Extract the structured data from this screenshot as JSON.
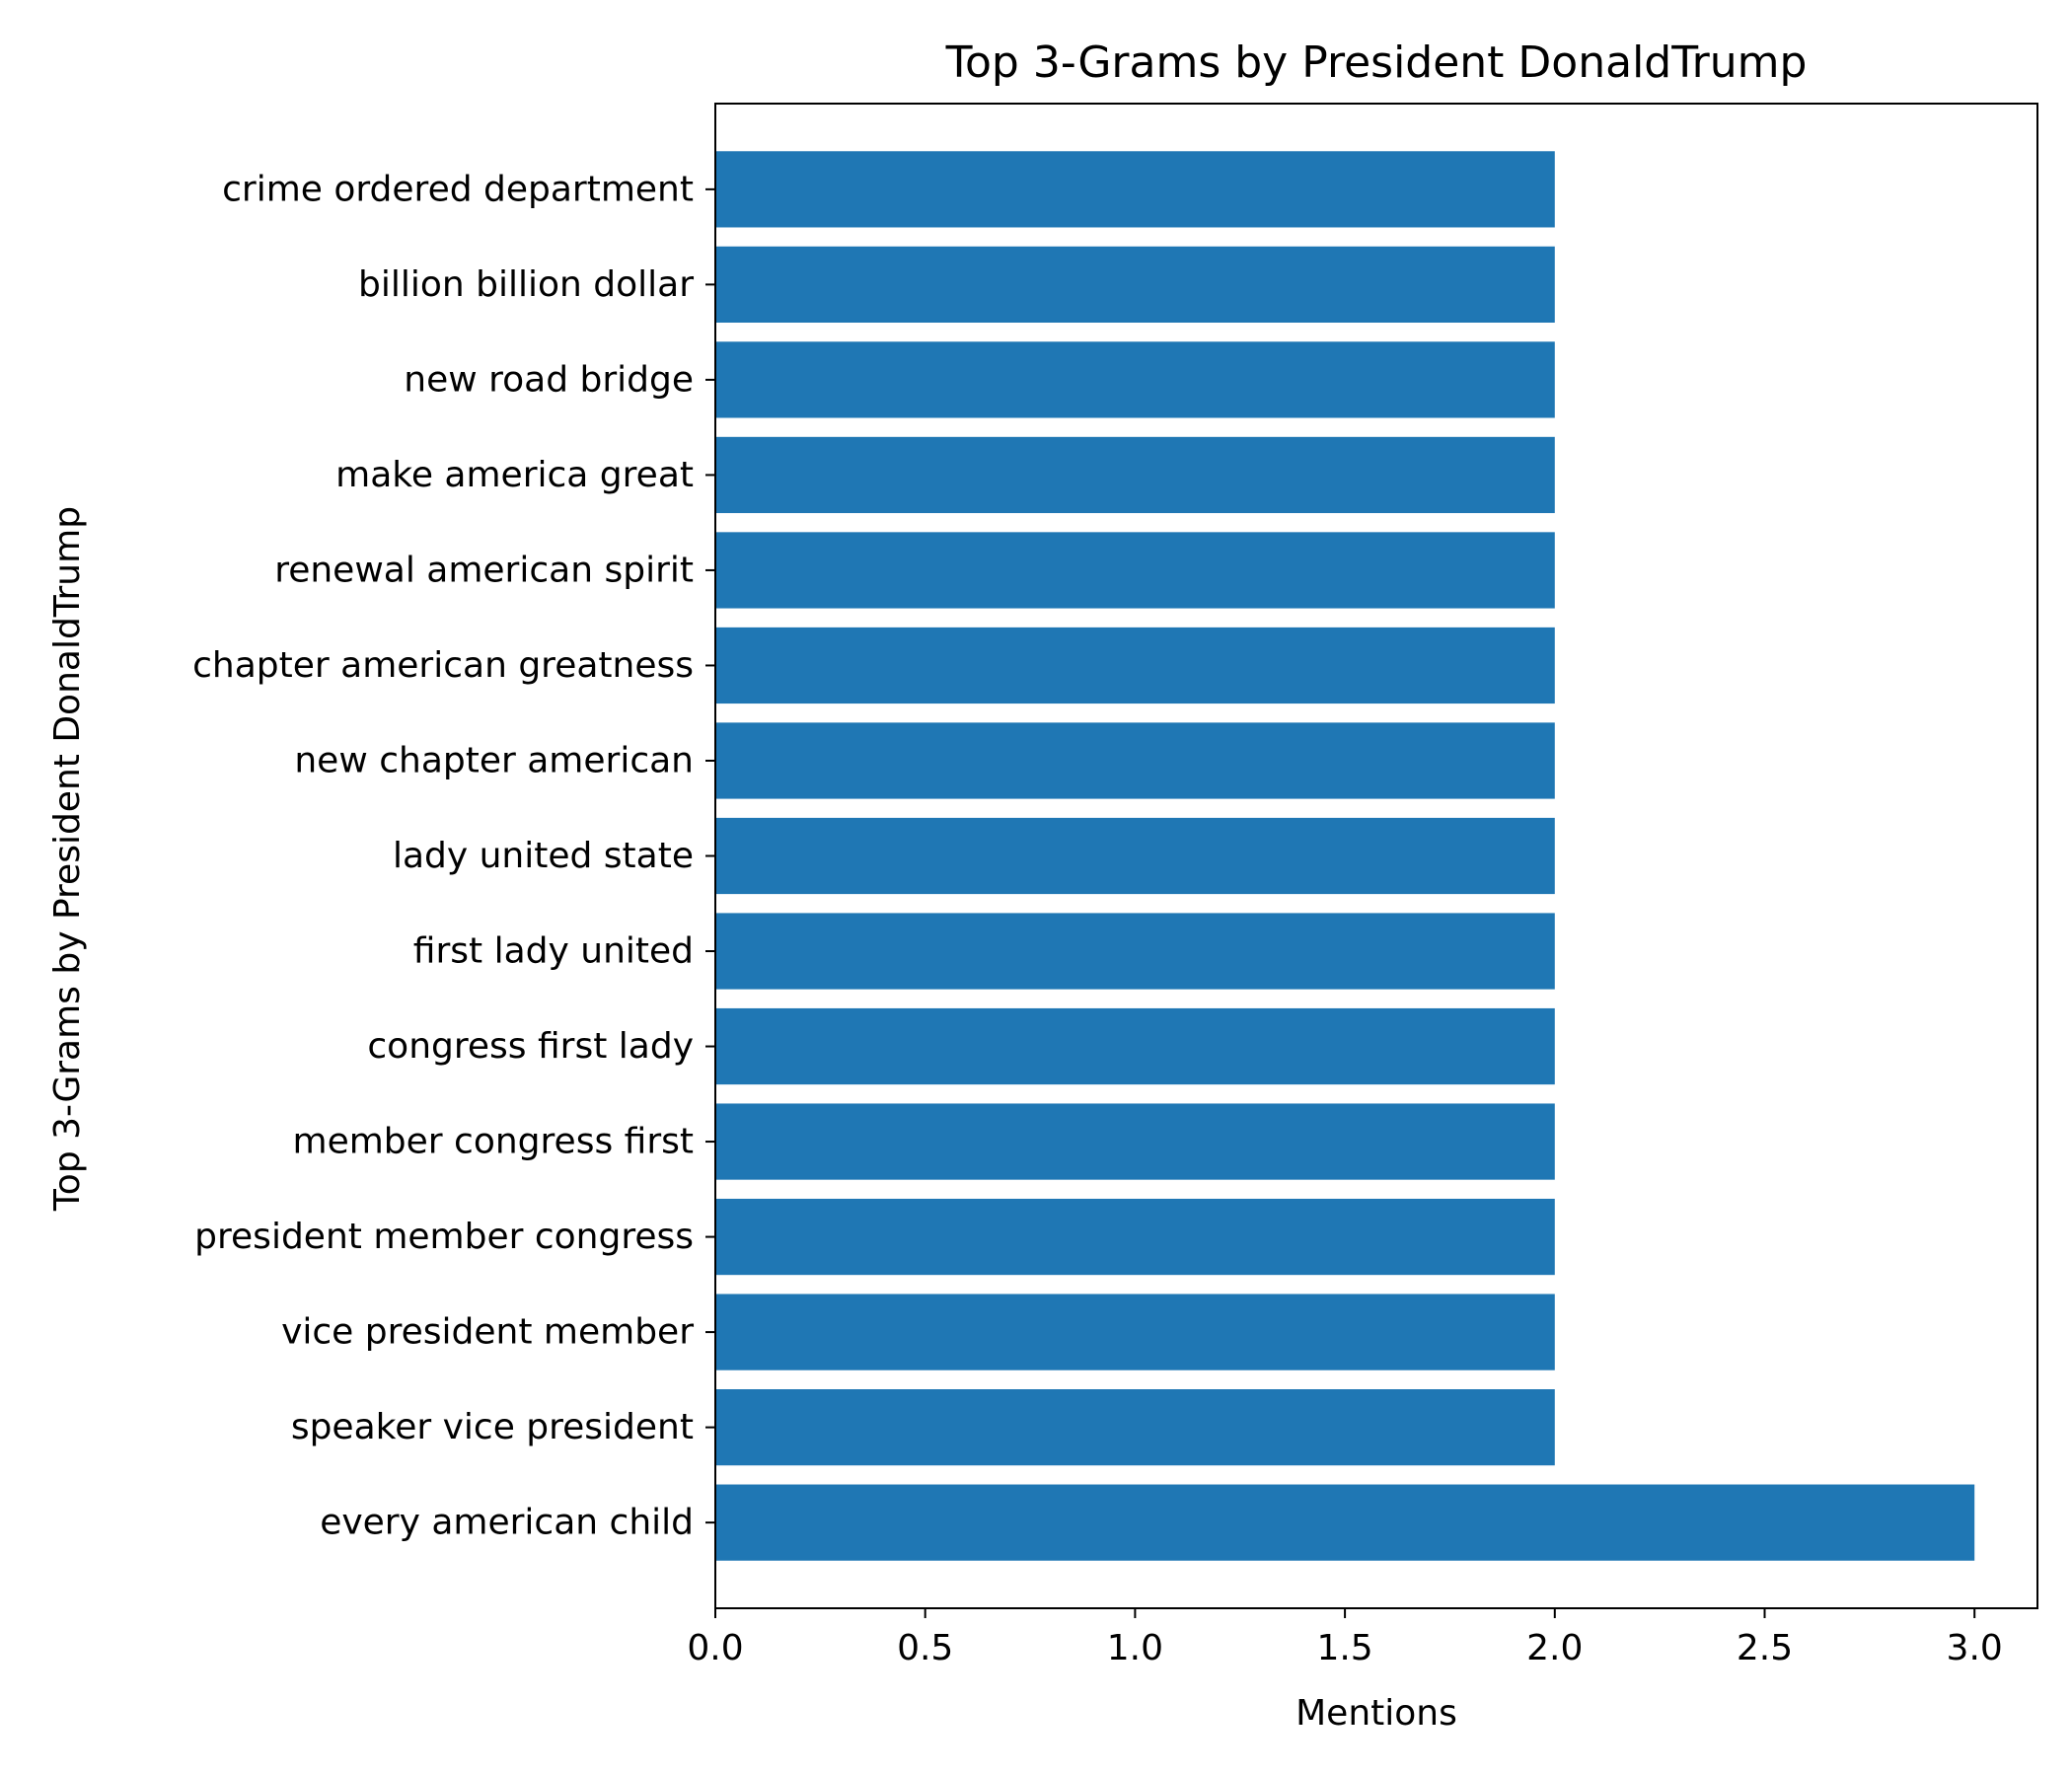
{
  "chart_data": {
    "type": "bar",
    "orientation": "horizontal",
    "title": "Top 3-Grams by President DonaldTrump",
    "xlabel": "Mentions",
    "ylabel": "Top 3-Grams by President DonaldTrump",
    "xlim": [
      0,
      3.15
    ],
    "x_ticks": [
      "0.0",
      "0.5",
      "1.0",
      "1.5",
      "2.0",
      "2.5",
      "3.0"
    ],
    "grid": false,
    "legend": "none",
    "bar_color": "#1f77b4",
    "categories": [
      "every american child",
      "speaker vice president",
      "vice president member",
      "president member congress",
      "member congress first",
      "congress first lady",
      "first lady united",
      "lady united state",
      "new chapter american",
      "chapter american greatness",
      "renewal american spirit",
      "make america great",
      "new road bridge",
      "billion billion dollar",
      "crime ordered department"
    ],
    "values": [
      3,
      2,
      2,
      2,
      2,
      2,
      2,
      2,
      2,
      2,
      2,
      2,
      2,
      2,
      2
    ]
  }
}
